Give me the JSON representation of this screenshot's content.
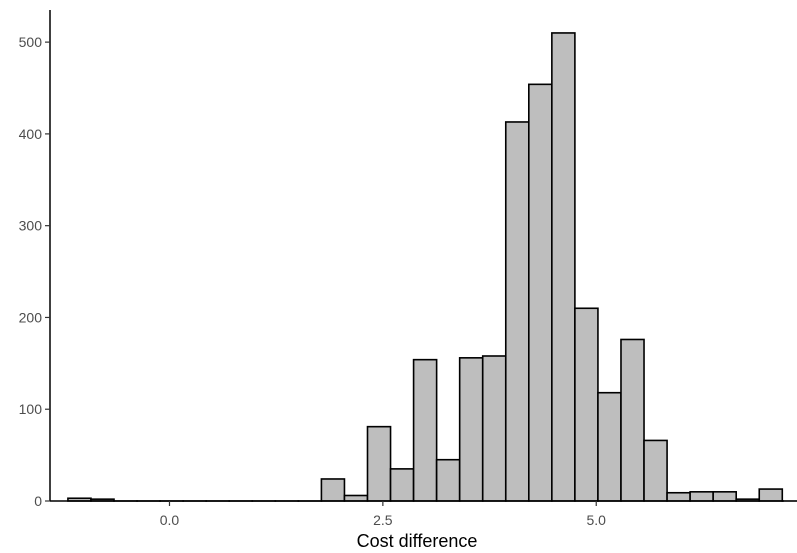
{
  "chart_data": {
    "type": "bar",
    "subtype": "histogram",
    "title": "",
    "xlabel": "Cost difference",
    "ylabel": "",
    "xlim": [
      -1.4,
      7.2
    ],
    "ylim": [
      0,
      535
    ],
    "x_ticks": [
      0.0,
      2.5,
      5.0
    ],
    "x_tick_labels": [
      "0.0",
      "2.5",
      "5.0"
    ],
    "y_ticks": [
      0,
      100,
      200,
      300,
      400,
      500
    ],
    "y_tick_labels": [
      "0",
      "100",
      "200",
      "300",
      "400",
      "500"
    ],
    "bin_width": 0.27,
    "bin_start": -1.19,
    "counts": [
      3,
      2,
      0,
      0,
      0,
      0,
      0,
      0,
      0,
      0,
      0,
      24,
      6,
      81,
      35,
      154,
      45,
      156,
      158,
      413,
      454,
      510,
      210,
      118,
      176,
      66,
      9,
      10,
      10,
      2,
      13,
      0,
      0,
      0,
      1,
      1,
      1
    ],
    "grid": false,
    "legend": "none",
    "colors": {
      "bar_fill": "#bebebe",
      "bar_stroke": "#000000",
      "axis": "#000000"
    }
  }
}
